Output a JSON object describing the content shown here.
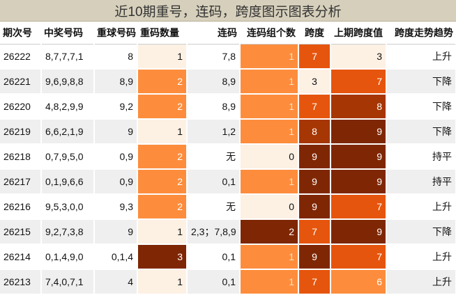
{
  "title": "近10期重号，连码，跨度图示图表分析",
  "headers": [
    "期次号",
    "中奖号码",
    "重球号码",
    "重码数量",
    "连码",
    "连码组个数",
    "跨度",
    "上期跨度值",
    "跨度走势趋势"
  ],
  "rows": [
    {
      "issue": "26222",
      "numbers": "8,7,7,7,1",
      "repeat": "8",
      "repeat_count": "1",
      "consecutive": "7,8",
      "consec_groups": "1",
      "span": "7",
      "prev_span": "3",
      "trend": "上升"
    },
    {
      "issue": "26221",
      "numbers": "9,6,9,8,8",
      "repeat": "8,9",
      "repeat_count": "2",
      "consecutive": "8,9",
      "consec_groups": "1",
      "span": "3",
      "prev_span": "7",
      "trend": "下降"
    },
    {
      "issue": "26220",
      "numbers": "4,8,2,9,9",
      "repeat": "9,2",
      "repeat_count": "2",
      "consecutive": "8,9",
      "consec_groups": "1",
      "span": "7",
      "prev_span": "8",
      "trend": "下降"
    },
    {
      "issue": "26219",
      "numbers": "6,6,2,1,9",
      "repeat": "9",
      "repeat_count": "1",
      "consecutive": "1,2",
      "consec_groups": "1",
      "span": "8",
      "prev_span": "9",
      "trend": "下降"
    },
    {
      "issue": "26218",
      "numbers": "0,7,9,5,0",
      "repeat": "0,9",
      "repeat_count": "2",
      "consecutive": "无",
      "consec_groups": "0",
      "span": "9",
      "prev_span": "9",
      "trend": "持平"
    },
    {
      "issue": "26217",
      "numbers": "0,1,9,6,6",
      "repeat": "0,9",
      "repeat_count": "2",
      "consecutive": "0,1",
      "consec_groups": "1",
      "span": "9",
      "prev_span": "9",
      "trend": "持平"
    },
    {
      "issue": "26216",
      "numbers": "9,5,3,0,0",
      "repeat": "9,3",
      "repeat_count": "2",
      "consecutive": "无",
      "consec_groups": "0",
      "span": "9",
      "prev_span": "7",
      "trend": "上升"
    },
    {
      "issue": "26215",
      "numbers": "9,2,7,3,8",
      "repeat": "9",
      "repeat_count": "1",
      "consecutive": "2,3；7,8,9",
      "consec_groups": "2",
      "span": "7",
      "prev_span": "9",
      "trend": "下降"
    },
    {
      "issue": "26214",
      "numbers": "0,1,4,9,0",
      "repeat": "0,1,4",
      "repeat_count": "3",
      "consecutive": "0,1",
      "consec_groups": "1",
      "span": "9",
      "prev_span": "7",
      "trend": "上升"
    },
    {
      "issue": "26213",
      "numbers": "7,4,0,7,1",
      "repeat": "4",
      "repeat_count": "1",
      "consecutive": "0,1",
      "consec_groups": "1",
      "span": "7",
      "prev_span": "6",
      "trend": "上升"
    }
  ],
  "colors": {
    "title_bg": "#d6cfbb",
    "heat_light": "#fdf1e4",
    "heat_orange": "#fd8d3c",
    "heat_mid": "#e6550d",
    "heat_dark": "#a63603",
    "heat_darkest": "#7f2704",
    "row_alt": "#efefef"
  }
}
